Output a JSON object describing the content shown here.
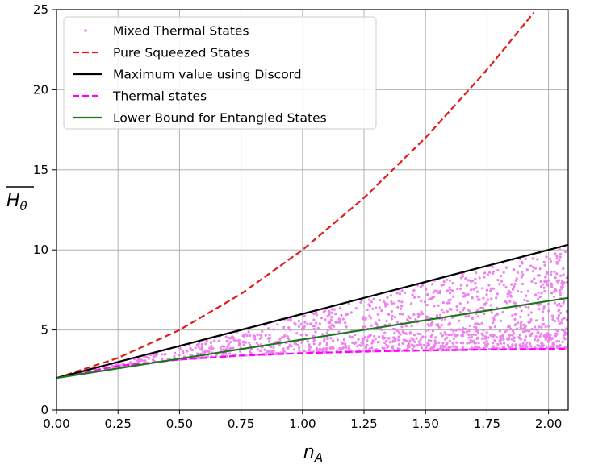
{
  "chart_data": {
    "type": "line",
    "xlabel": "n_A",
    "ylabel": "H_θ (overlined)",
    "xlim": [
      0,
      2.08
    ],
    "ylim": [
      0,
      25
    ],
    "grid": true,
    "legend_position": "top-left",
    "x_ticks": [
      "0.00",
      "0.25",
      "0.50",
      "0.75",
      "1.00",
      "1.25",
      "1.50",
      "1.75",
      "2.00"
    ],
    "y_ticks": [
      "0",
      "5",
      "10",
      "15",
      "20",
      "25"
    ],
    "series": [
      {
        "name": "Pure Squeezed States",
        "color": "#e31a1c",
        "style": "dashed",
        "x": [
          0,
          0.25,
          0.5,
          0.75,
          1.0,
          1.25,
          1.5,
          1.75,
          1.95
        ],
        "y": [
          2.0,
          3.25,
          5.0,
          7.25,
          10.0,
          13.25,
          17.0,
          21.25,
          25.0
        ]
      },
      {
        "name": "Maximum value using Discord",
        "color": "#000000",
        "style": "solid",
        "x": [
          0,
          2.08
        ],
        "y": [
          2.0,
          10.32
        ]
      },
      {
        "name": "Thermal states",
        "color": "#ff00ff",
        "style": "dashed",
        "x": [
          0,
          0.25,
          0.5,
          0.75,
          1.0,
          1.25,
          1.5,
          1.75,
          2.0,
          2.08
        ],
        "y": [
          2.0,
          2.75,
          3.15,
          3.4,
          3.55,
          3.65,
          3.72,
          3.78,
          3.82,
          3.83
        ]
      },
      {
        "name": "Lower Bound for Entangled States",
        "color": "#1a7a1a",
        "style": "solid",
        "x": [
          0,
          2.08
        ],
        "y": [
          2.0,
          7.0
        ]
      }
    ],
    "scatter": {
      "name": "Mixed Thermal States",
      "color": "#ee82ee",
      "description": "random points between thermal-state curve and discord maximum",
      "n_points": 1400
    }
  },
  "labels": {
    "xlabel_main": "n",
    "xlabel_sub": "A",
    "ylabel_main": "H",
    "ylabel_sub": "θ"
  }
}
